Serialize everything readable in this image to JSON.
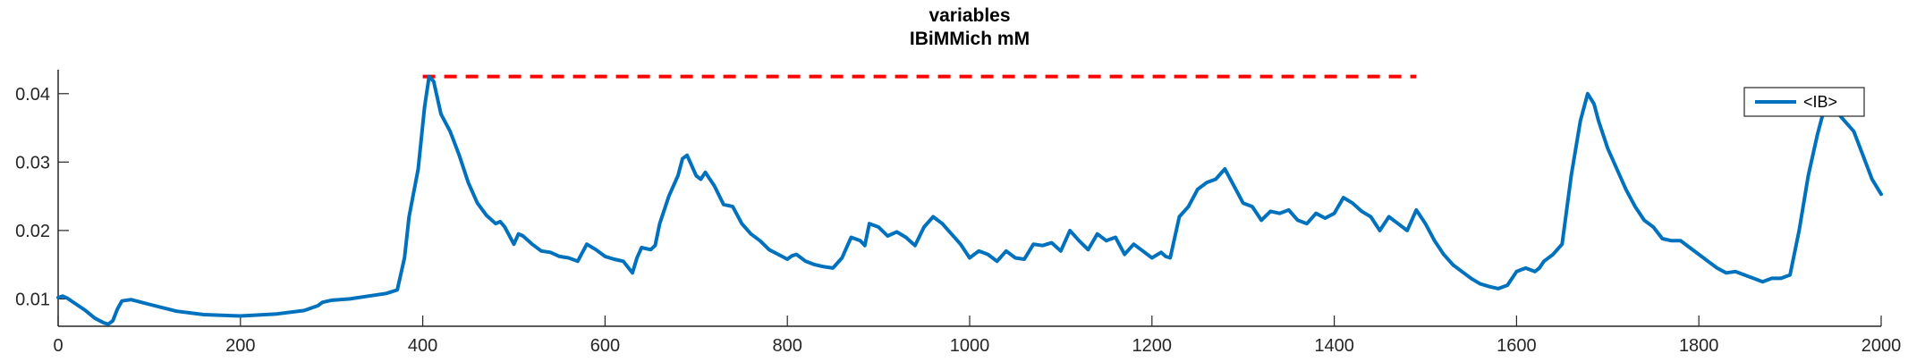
{
  "chart_data": {
    "type": "line",
    "title": [
      "variables",
      "IBiMMich mM"
    ],
    "xlim": [
      0,
      2000
    ],
    "ylim": [
      0.006,
      0.0435
    ],
    "x_ticks": [
      0,
      200,
      400,
      600,
      800,
      1000,
      1200,
      1400,
      1600,
      1800,
      2000
    ],
    "x_tick_labels": [
      "0",
      "200",
      "400",
      "600",
      "800",
      "1000",
      "1200",
      "1400",
      "1600",
      "1800",
      "2000"
    ],
    "y_ticks": [
      0.01,
      0.02,
      0.03,
      0.04
    ],
    "y_tick_labels": [
      "0.01",
      "0.02",
      "0.03",
      "0.04"
    ],
    "grid": false,
    "legend": {
      "position": "top-right",
      "entries": [
        "<IB>"
      ]
    },
    "series": [
      {
        "name": "<IB>",
        "color": "#0072BD",
        "points": [
          [
            0,
            0.0102
          ],
          [
            5,
            0.0104
          ],
          [
            10,
            0.0101
          ],
          [
            20,
            0.0092
          ],
          [
            30,
            0.0083
          ],
          [
            40,
            0.0072
          ],
          [
            50,
            0.0065
          ],
          [
            55,
            0.0063
          ],
          [
            60,
            0.0068
          ],
          [
            65,
            0.0085
          ],
          [
            70,
            0.0097
          ],
          [
            80,
            0.0099
          ],
          [
            100,
            0.0092
          ],
          [
            130,
            0.0082
          ],
          [
            160,
            0.0077
          ],
          [
            200,
            0.0075
          ],
          [
            240,
            0.0078
          ],
          [
            270,
            0.0083
          ],
          [
            285,
            0.009
          ],
          [
            290,
            0.0095
          ],
          [
            300,
            0.0098
          ],
          [
            320,
            0.01
          ],
          [
            340,
            0.0104
          ],
          [
            360,
            0.0108
          ],
          [
            372,
            0.0113
          ],
          [
            380,
            0.016
          ],
          [
            385,
            0.022
          ],
          [
            395,
            0.029
          ],
          [
            402,
            0.038
          ],
          [
            407,
            0.0425
          ],
          [
            412,
            0.0418
          ],
          [
            420,
            0.037
          ],
          [
            430,
            0.0345
          ],
          [
            440,
            0.031
          ],
          [
            450,
            0.027
          ],
          [
            460,
            0.024
          ],
          [
            470,
            0.0222
          ],
          [
            480,
            0.021
          ],
          [
            485,
            0.0213
          ],
          [
            490,
            0.0205
          ],
          [
            500,
            0.018
          ],
          [
            505,
            0.0195
          ],
          [
            510,
            0.0192
          ],
          [
            520,
            0.018
          ],
          [
            530,
            0.017
          ],
          [
            540,
            0.0168
          ],
          [
            550,
            0.0162
          ],
          [
            560,
            0.016
          ],
          [
            570,
            0.0155
          ],
          [
            580,
            0.018
          ],
          [
            590,
            0.0172
          ],
          [
            600,
            0.0162
          ],
          [
            610,
            0.0158
          ],
          [
            620,
            0.0155
          ],
          [
            630,
            0.0138
          ],
          [
            635,
            0.016
          ],
          [
            640,
            0.0175
          ],
          [
            650,
            0.0172
          ],
          [
            655,
            0.0178
          ],
          [
            660,
            0.021
          ],
          [
            670,
            0.025
          ],
          [
            680,
            0.028
          ],
          [
            685,
            0.0305
          ],
          [
            690,
            0.031
          ],
          [
            700,
            0.028
          ],
          [
            705,
            0.0275
          ],
          [
            710,
            0.0285
          ],
          [
            720,
            0.0265
          ],
          [
            730,
            0.0238
          ],
          [
            740,
            0.0235
          ],
          [
            750,
            0.021
          ],
          [
            760,
            0.0195
          ],
          [
            770,
            0.0185
          ],
          [
            780,
            0.0172
          ],
          [
            790,
            0.0165
          ],
          [
            800,
            0.0158
          ],
          [
            805,
            0.0163
          ],
          [
            810,
            0.0165
          ],
          [
            820,
            0.0155
          ],
          [
            830,
            0.015
          ],
          [
            840,
            0.0147
          ],
          [
            850,
            0.0145
          ],
          [
            860,
            0.016
          ],
          [
            870,
            0.019
          ],
          [
            880,
            0.0185
          ],
          [
            885,
            0.0178
          ],
          [
            890,
            0.021
          ],
          [
            900,
            0.0205
          ],
          [
            910,
            0.0192
          ],
          [
            920,
            0.0198
          ],
          [
            930,
            0.019
          ],
          [
            940,
            0.0178
          ],
          [
            950,
            0.0205
          ],
          [
            960,
            0.022
          ],
          [
            970,
            0.021
          ],
          [
            980,
            0.0195
          ],
          [
            990,
            0.018
          ],
          [
            1000,
            0.016
          ],
          [
            1010,
            0.017
          ],
          [
            1020,
            0.0165
          ],
          [
            1030,
            0.0155
          ],
          [
            1040,
            0.017
          ],
          [
            1050,
            0.016
          ],
          [
            1060,
            0.0158
          ],
          [
            1070,
            0.018
          ],
          [
            1080,
            0.0178
          ],
          [
            1090,
            0.0182
          ],
          [
            1100,
            0.017
          ],
          [
            1110,
            0.02
          ],
          [
            1120,
            0.0185
          ],
          [
            1130,
            0.0172
          ],
          [
            1140,
            0.0195
          ],
          [
            1150,
            0.0185
          ],
          [
            1160,
            0.019
          ],
          [
            1170,
            0.0165
          ],
          [
            1180,
            0.018
          ],
          [
            1190,
            0.017
          ],
          [
            1200,
            0.016
          ],
          [
            1210,
            0.0168
          ],
          [
            1215,
            0.0162
          ],
          [
            1220,
            0.016
          ],
          [
            1230,
            0.022
          ],
          [
            1240,
            0.0235
          ],
          [
            1250,
            0.026
          ],
          [
            1260,
            0.027
          ],
          [
            1270,
            0.0275
          ],
          [
            1280,
            0.029
          ],
          [
            1290,
            0.0265
          ],
          [
            1300,
            0.024
          ],
          [
            1310,
            0.0235
          ],
          [
            1320,
            0.0215
          ],
          [
            1330,
            0.0228
          ],
          [
            1340,
            0.0225
          ],
          [
            1350,
            0.023
          ],
          [
            1360,
            0.0215
          ],
          [
            1370,
            0.021
          ],
          [
            1380,
            0.0225
          ],
          [
            1390,
            0.0218
          ],
          [
            1400,
            0.0225
          ],
          [
            1410,
            0.0248
          ],
          [
            1420,
            0.024
          ],
          [
            1430,
            0.0228
          ],
          [
            1440,
            0.022
          ],
          [
            1450,
            0.02
          ],
          [
            1460,
            0.022
          ],
          [
            1470,
            0.021
          ],
          [
            1480,
            0.02
          ],
          [
            1490,
            0.023
          ],
          [
            1500,
            0.021
          ],
          [
            1510,
            0.0185
          ],
          [
            1520,
            0.0165
          ],
          [
            1530,
            0.015
          ],
          [
            1540,
            0.014
          ],
          [
            1550,
            0.013
          ],
          [
            1560,
            0.0122
          ],
          [
            1570,
            0.0118
          ],
          [
            1580,
            0.0115
          ],
          [
            1590,
            0.012
          ],
          [
            1600,
            0.014
          ],
          [
            1610,
            0.0145
          ],
          [
            1620,
            0.014
          ],
          [
            1625,
            0.0145
          ],
          [
            1630,
            0.0155
          ],
          [
            1640,
            0.0165
          ],
          [
            1650,
            0.018
          ],
          [
            1660,
            0.028
          ],
          [
            1670,
            0.036
          ],
          [
            1678,
            0.04
          ],
          [
            1685,
            0.0385
          ],
          [
            1690,
            0.036
          ],
          [
            1700,
            0.032
          ],
          [
            1710,
            0.029
          ],
          [
            1720,
            0.026
          ],
          [
            1730,
            0.0235
          ],
          [
            1740,
            0.0215
          ],
          [
            1750,
            0.0205
          ],
          [
            1760,
            0.0188
          ],
          [
            1770,
            0.0185
          ],
          [
            1780,
            0.0185
          ],
          [
            1790,
            0.0175
          ],
          [
            1800,
            0.0165
          ],
          [
            1810,
            0.0155
          ],
          [
            1820,
            0.0145
          ],
          [
            1830,
            0.0138
          ],
          [
            1840,
            0.014
          ],
          [
            1850,
            0.0135
          ],
          [
            1860,
            0.013
          ],
          [
            1870,
            0.0125
          ],
          [
            1880,
            0.013
          ],
          [
            1890,
            0.013
          ],
          [
            1900,
            0.0135
          ],
          [
            1910,
            0.02
          ],
          [
            1920,
            0.028
          ],
          [
            1930,
            0.034
          ],
          [
            1938,
            0.038
          ],
          [
            1945,
            0.0395
          ],
          [
            1950,
            0.0375
          ],
          [
            1960,
            0.036
          ],
          [
            1970,
            0.0345
          ],
          [
            1980,
            0.031
          ],
          [
            1990,
            0.0275
          ],
          [
            2000,
            0.0253
          ]
        ]
      }
    ],
    "reference_line": {
      "style": "dashed",
      "color": "#FF0000",
      "y": 0.0425,
      "x_range": [
        400,
        1490
      ]
    }
  }
}
